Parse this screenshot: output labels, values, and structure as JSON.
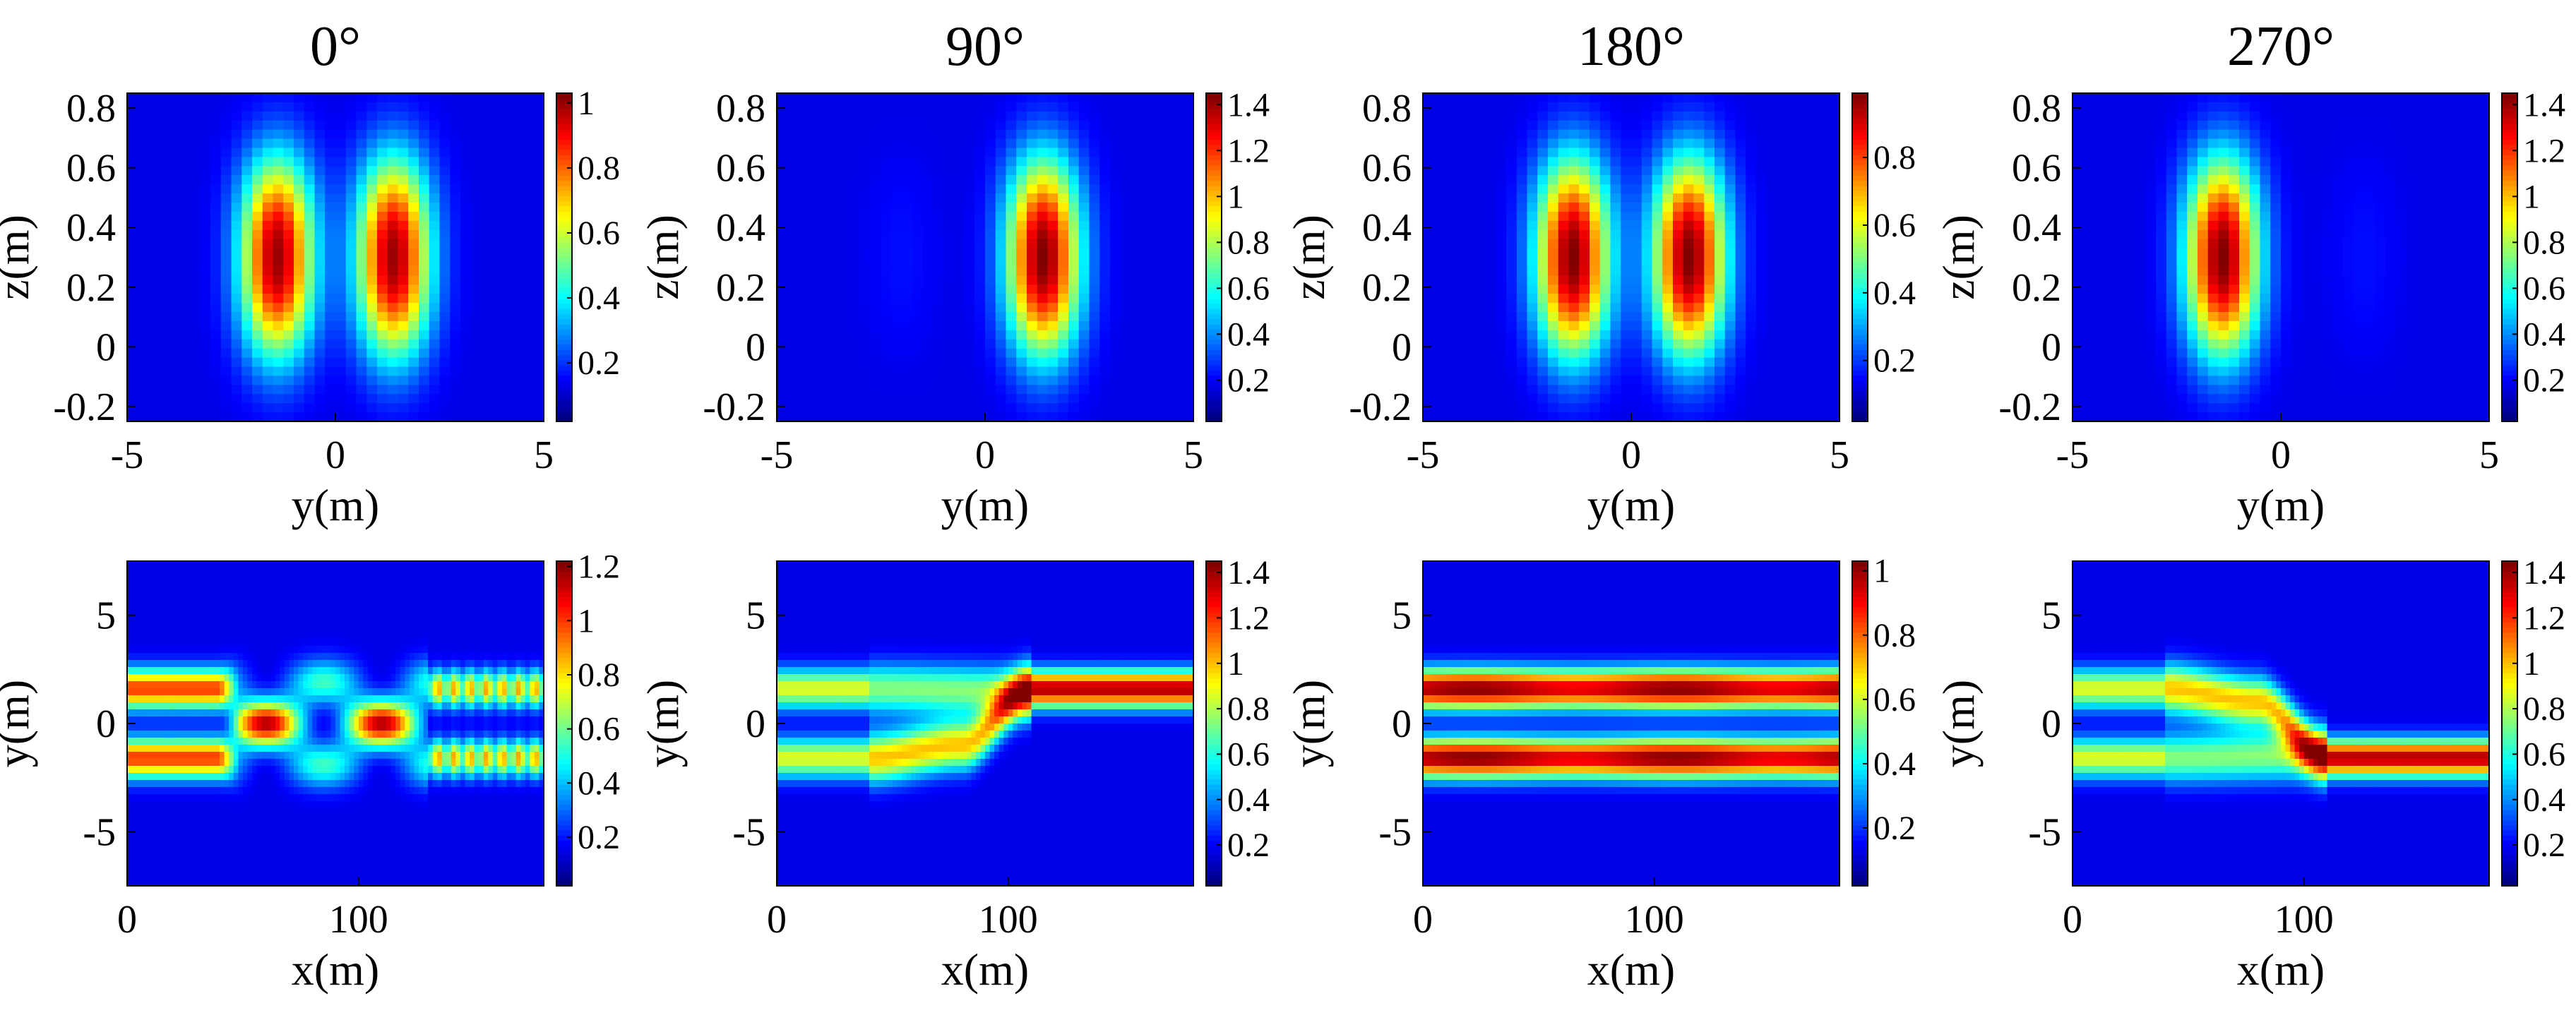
{
  "chart_data": [
    {
      "type": "heatmap",
      "title": "0°",
      "xlabel": "y(m)",
      "ylabel": "z(m)",
      "view": "cross-section",
      "xlim": [
        -5,
        5
      ],
      "ylim": [
        -0.25,
        0.85
      ],
      "xticks": [
        "-5",
        "0",
        "5"
      ],
      "yticks": [
        "-0.2",
        "0",
        "0.2",
        "0.4",
        "0.6",
        "0.8"
      ],
      "colorbar": {
        "range": [
          0.02,
          1.03
        ],
        "ticks": [
          "0.2",
          "0.4",
          "0.6",
          "0.8",
          "1"
        ]
      },
      "beams": [
        {
          "center": -1.4,
          "peak": 1.0
        },
        {
          "center": 1.4,
          "peak": 1.0
        }
      ]
    },
    {
      "type": "heatmap",
      "title": "90°",
      "xlabel": "y(m)",
      "ylabel": "z(m)",
      "view": "cross-section",
      "xlim": [
        -5,
        5
      ],
      "ylim": [
        -0.25,
        0.85
      ],
      "xticks": [
        "-5",
        "0",
        "5"
      ],
      "yticks": [
        "-0.2",
        "0",
        "0.2",
        "0.4",
        "0.6",
        "0.8"
      ],
      "colorbar": {
        "range": [
          0.02,
          1.45
        ],
        "ticks": [
          "0.2",
          "0.4",
          "0.6",
          "0.8",
          "1",
          "1.2",
          "1.4"
        ]
      },
      "beams": [
        {
          "center": 1.4,
          "peak": 1.45
        },
        {
          "center": -2.0,
          "peak": 0.06
        }
      ]
    },
    {
      "type": "heatmap",
      "title": "180°",
      "xlabel": "y(m)",
      "ylabel": "z(m)",
      "view": "cross-section",
      "xlim": [
        -5,
        5
      ],
      "ylim": [
        -0.25,
        0.85
      ],
      "xticks": [
        "-5",
        "0",
        "5"
      ],
      "yticks": [
        "-0.2",
        "0",
        "0.2",
        "0.4",
        "0.6",
        "0.8"
      ],
      "colorbar": {
        "range": [
          0.02,
          0.99
        ],
        "ticks": [
          "0.2",
          "0.4",
          "0.6",
          "0.8"
        ]
      },
      "beams": [
        {
          "center": -1.4,
          "peak": 0.99
        },
        {
          "center": 1.4,
          "peak": 0.99
        }
      ]
    },
    {
      "type": "heatmap",
      "title": "270°",
      "xlabel": "y(m)",
      "ylabel": "z(m)",
      "view": "cross-section",
      "xlim": [
        -5,
        5
      ],
      "ylim": [
        -0.25,
        0.85
      ],
      "xticks": [
        "-5",
        "0",
        "5"
      ],
      "yticks": [
        "-0.2",
        "0",
        "0.2",
        "0.4",
        "0.6",
        "0.8"
      ],
      "colorbar": {
        "range": [
          0.02,
          1.45
        ],
        "ticks": [
          "0.2",
          "0.4",
          "0.6",
          "0.8",
          "1",
          "1.2",
          "1.4"
        ]
      },
      "beams": [
        {
          "center": -1.4,
          "peak": 1.45
        },
        {
          "center": 2.0,
          "peak": 0.06
        }
      ]
    },
    {
      "type": "heatmap",
      "title": "",
      "xlabel": "x(m)",
      "ylabel": "y(m)",
      "view": "propagation",
      "mode": "interference",
      "xlim": [
        0,
        180
      ],
      "ylim": [
        -7.5,
        7.5
      ],
      "xticks": [
        "0",
        "100"
      ],
      "yticks": [
        "-5",
        "0",
        "5"
      ],
      "colorbar": {
        "range": [
          0.02,
          1.22
        ],
        "ticks": [
          "0.2",
          "0.4",
          "0.6",
          "0.8",
          "1",
          "1.2"
        ]
      }
    },
    {
      "type": "heatmap",
      "title": "",
      "xlabel": "x(m)",
      "ylabel": "y(m)",
      "view": "propagation",
      "mode": "switch-up",
      "xlim": [
        0,
        180
      ],
      "ylim": [
        -7.5,
        7.5
      ],
      "xticks": [
        "0",
        "100"
      ],
      "yticks": [
        "-5",
        "0",
        "5"
      ],
      "colorbar": {
        "range": [
          0.02,
          1.45
        ],
        "ticks": [
          "0.2",
          "0.4",
          "0.6",
          "0.8",
          "1",
          "1.2",
          "1.4"
        ]
      }
    },
    {
      "type": "heatmap",
      "title": "",
      "xlabel": "x(m)",
      "ylabel": "y(m)",
      "view": "propagation",
      "mode": "parallel",
      "xlim": [
        0,
        180
      ],
      "ylim": [
        -7.5,
        7.5
      ],
      "xticks": [
        "0",
        "100"
      ],
      "yticks": [
        "-5",
        "0",
        "5"
      ],
      "colorbar": {
        "range": [
          0.02,
          1.03
        ],
        "ticks": [
          "0.2",
          "0.4",
          "0.6",
          "0.8",
          "1"
        ]
      }
    },
    {
      "type": "heatmap",
      "title": "",
      "xlabel": "x(m)",
      "ylabel": "y(m)",
      "view": "propagation",
      "mode": "switch-down",
      "xlim": [
        0,
        180
      ],
      "ylim": [
        -7.5,
        7.5
      ],
      "xticks": [
        "0",
        "100"
      ],
      "yticks": [
        "-5",
        "0",
        "5"
      ],
      "colorbar": {
        "range": [
          0.02,
          1.45
        ],
        "ticks": [
          "0.2",
          "0.4",
          "0.6",
          "0.8",
          "1",
          "1.2",
          "1.4"
        ]
      }
    }
  ]
}
